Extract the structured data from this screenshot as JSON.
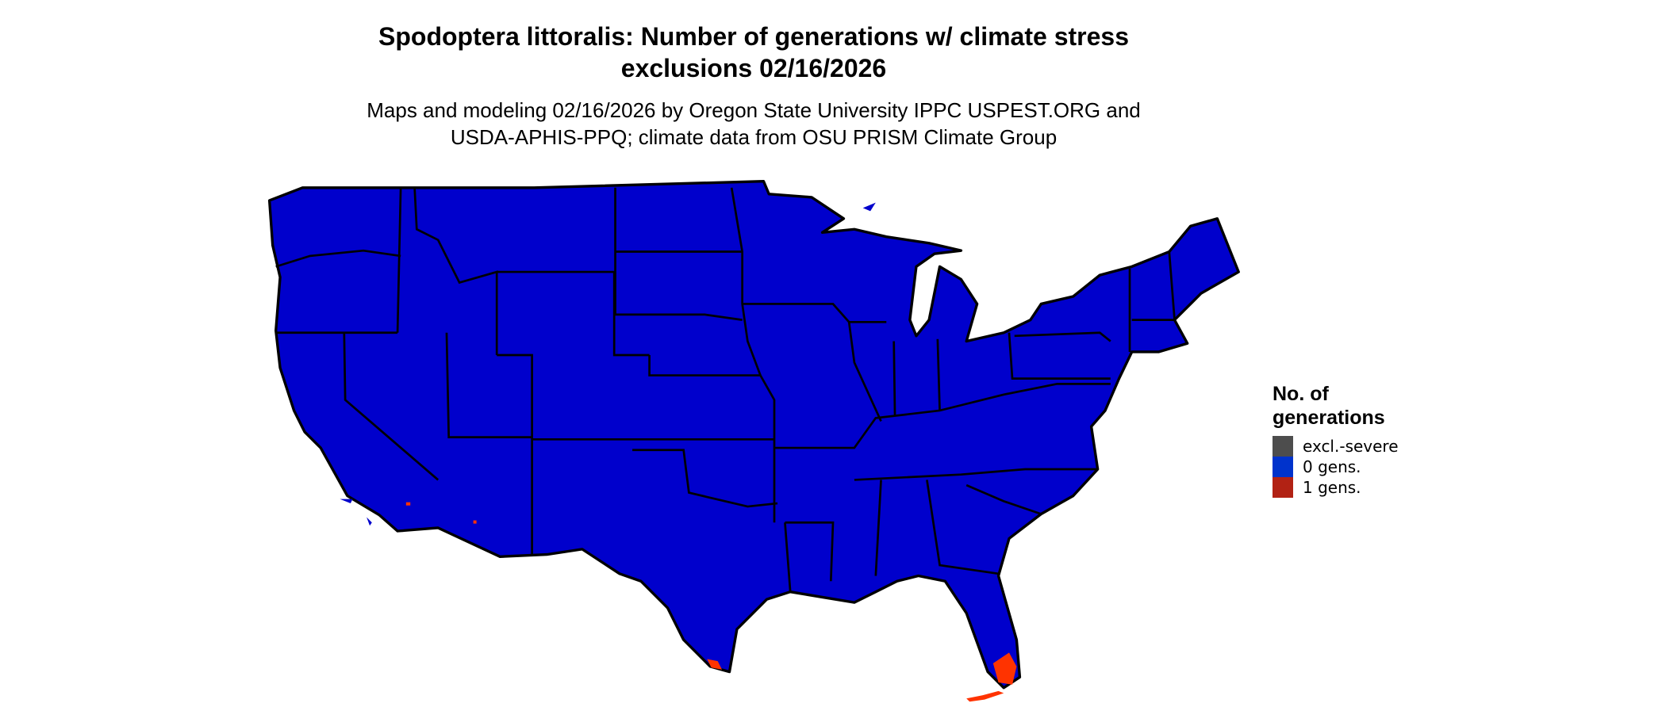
{
  "title_line1": "Spodoptera littoralis: Number of generations w/ climate stress",
  "title_line2": "exclusions 02/16/2026",
  "subtitle_line1": "Maps and modeling 02/16/2026 by Oregon State University IPPC USPEST.ORG and",
  "subtitle_line2": "USDA-APHIS-PPQ; climate data from OSU PRISM Climate Group",
  "legend": {
    "title_line1": "No. of",
    "title_line2": "generations",
    "items": [
      {
        "label": "excl.-severe",
        "color": "#4d4d4d"
      },
      {
        "label": "0 gens.",
        "color": "#0033cc"
      },
      {
        "label": "1 gens.",
        "color": "#b22214"
      }
    ]
  },
  "colors": {
    "land": "#0000cc",
    "borders": "#000000",
    "one_gen_patch": "#ff3300"
  }
}
